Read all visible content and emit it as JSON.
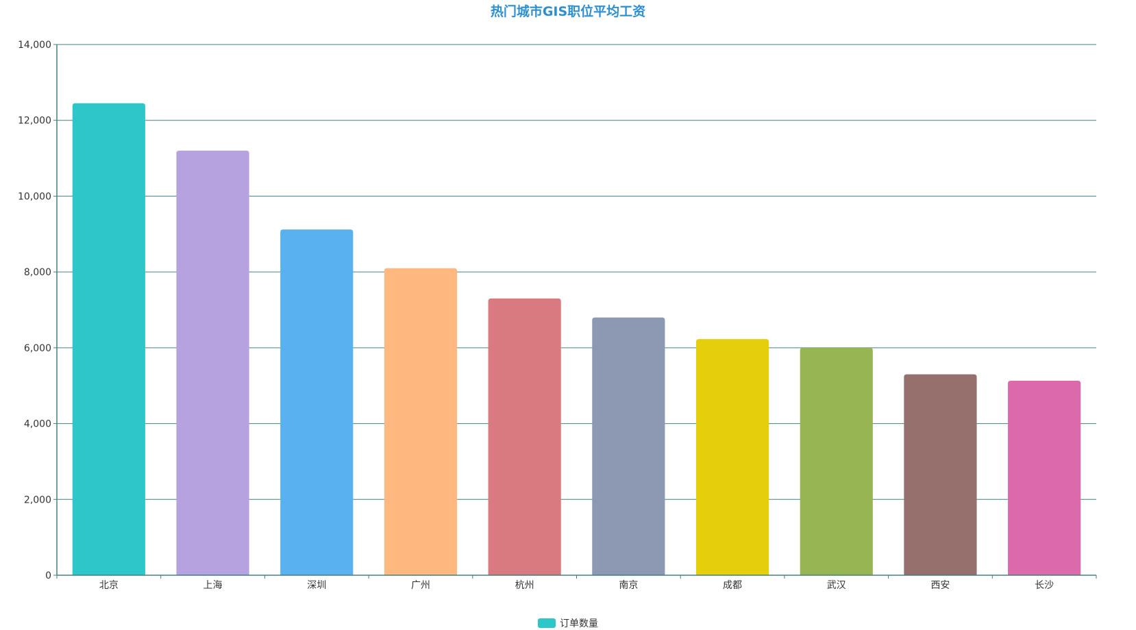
{
  "chart_data": {
    "type": "bar",
    "title": "热门城市GIS职位平均工资",
    "categories": [
      "北京",
      "上海",
      "深圳",
      "广州",
      "杭州",
      "南京",
      "成都",
      "武汉",
      "西安",
      "长沙"
    ],
    "series": [
      {
        "name": "订单数量",
        "values": [
          12450,
          11200,
          9120,
          8100,
          7300,
          6800,
          6230,
          6000,
          5300,
          5130
        ],
        "colors": [
          "#2ec7c9",
          "#b6a2de",
          "#5ab1ef",
          "#ffb980",
          "#d87a80",
          "#8d98b3",
          "#e5cf0d",
          "#97b552",
          "#95706d",
          "#dc69aa"
        ]
      }
    ],
    "yticks": [
      "0",
      "2,000",
      "4,000",
      "6,000",
      "8,000",
      "10,000",
      "12,000",
      "14,000"
    ],
    "ylim": [
      0,
      14000
    ],
    "grid": true,
    "legend_position": "bottom-center",
    "axis_color": "#408080",
    "title_color": "#2e8fd0"
  }
}
